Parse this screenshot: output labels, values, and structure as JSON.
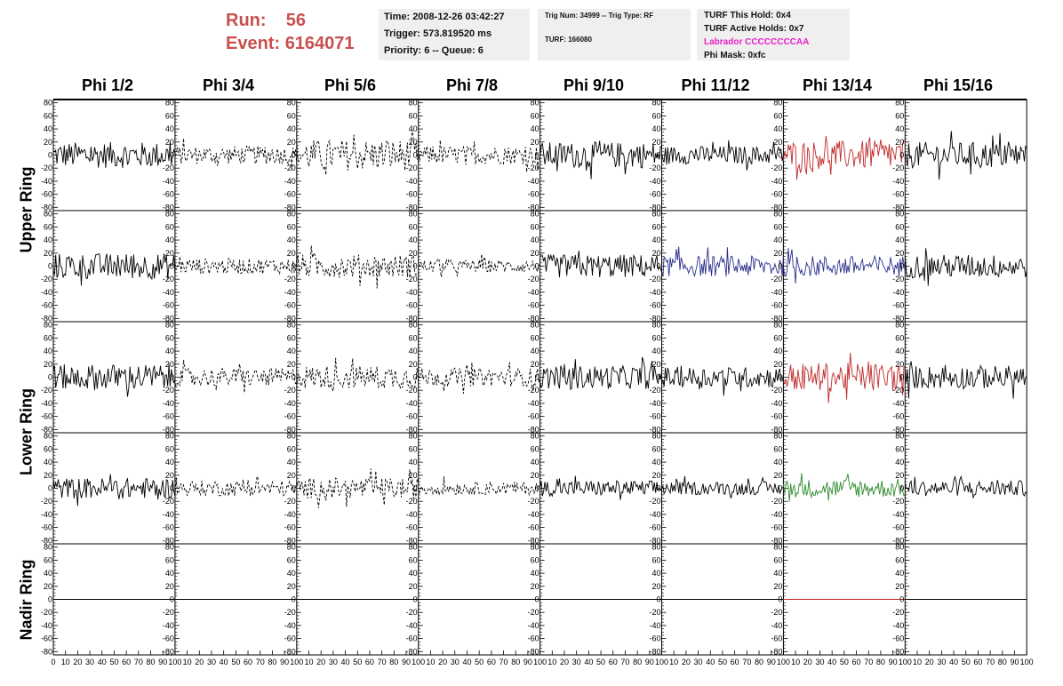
{
  "header": {
    "run_label": "Run:",
    "run_value": "56",
    "event_label": "Event:",
    "event_value": "6164071",
    "time": "Time: 2008-12-26 03:42:27",
    "trigger": "Trigger: 573.819520 ms",
    "priority": "Priority: 6 -- Queue: 6",
    "trig_num": "Trig Num: 34999 -- Trig Type: RF",
    "turf": "TURF: 166080",
    "turf_this_hold": "TURF This Hold: 0x4",
    "turf_active_holds": "TURF Active Holds: 0x7",
    "labrador": "Labrador CCCCCCCCAA",
    "phi_mask": "Phi Mask: 0xfc"
  },
  "colors": {
    "header_red": "#c8504f",
    "labrador_magenta": "#e81ec8",
    "trace_red": "#c0282a",
    "trace_blue": "#2a2f8c",
    "trace_green": "#2e8b2e",
    "trace_black": "#000000"
  },
  "chart_data": {
    "type": "line",
    "columns": [
      "Phi 1/2",
      "Phi 3/4",
      "Phi 5/6",
      "Phi 7/8",
      "Phi 9/10",
      "Phi 11/12",
      "Phi 13/14",
      "Phi 15/16"
    ],
    "rows": [
      "Upper Ring",
      "Upper Ring",
      "Lower Ring",
      "Lower Ring",
      "Nadir Ring"
    ],
    "ylim": [
      -85,
      85
    ],
    "yticks": [
      -80,
      -60,
      -40,
      -20,
      0,
      20,
      40,
      60,
      80
    ],
    "xlim": [
      0,
      100
    ],
    "xticks": [
      0,
      10,
      20,
      30,
      40,
      50,
      60,
      70,
      80,
      90,
      100
    ],
    "styles": [
      [
        "solid",
        "dashed",
        "dashed",
        "dashed",
        "solid",
        "solid",
        "solid",
        "solid"
      ],
      [
        "solid",
        "dashed",
        "dashed",
        "dashed",
        "solid",
        "solid",
        "solid",
        "solid"
      ],
      [
        "solid",
        "dashed",
        "dashed",
        "dashed",
        "solid",
        "solid",
        "solid",
        "solid"
      ],
      [
        "solid",
        "dashed",
        "dashed",
        "dashed",
        "solid",
        "solid",
        "solid",
        "solid"
      ],
      [
        "solid",
        "solid",
        "solid",
        "solid",
        "solid",
        "solid",
        "solid",
        "solid"
      ]
    ],
    "colors": [
      [
        "#000000",
        "#000000",
        "#000000",
        "#000000",
        "#000000",
        "#000000",
        "#c0282a",
        "#000000"
      ],
      [
        "#000000",
        "#000000",
        "#000000",
        "#000000",
        "#000000",
        "#2a2f8c",
        "#2a2f8c",
        "#000000"
      ],
      [
        "#000000",
        "#000000",
        "#000000",
        "#000000",
        "#000000",
        "#000000",
        "#c0282a",
        "#000000"
      ],
      [
        "#000000",
        "#000000",
        "#000000",
        "#000000",
        "#000000",
        "#000000",
        "#2e8b2e",
        "#000000"
      ],
      [
        "#000000",
        "#000000",
        "#000000",
        "#000000",
        "#000000",
        "#000000",
        "#c0282a",
        "#000000"
      ]
    ],
    "amplitudes": [
      [
        20,
        14,
        24,
        14,
        20,
        14,
        22,
        20
      ],
      [
        20,
        12,
        18,
        10,
        18,
        16,
        16,
        18
      ],
      [
        20,
        14,
        18,
        14,
        18,
        16,
        22,
        18
      ],
      [
        16,
        12,
        16,
        10,
        12,
        10,
        14,
        12
      ],
      [
        0,
        0,
        0,
        0,
        0,
        0,
        0,
        0
      ]
    ],
    "note_series": "noise-like waveform traces, approximately 100 samples each, centred on 0"
  }
}
